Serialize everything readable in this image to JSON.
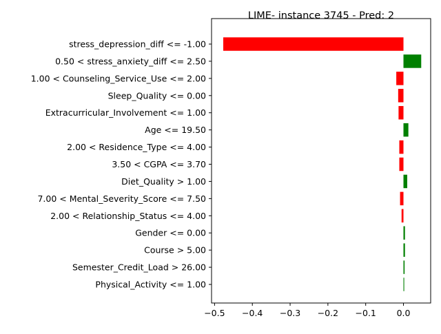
{
  "chart_data": {
    "type": "bar",
    "orientation": "horizontal",
    "title": "LIME- instance 3745 - Pred: 2",
    "xlabel": "",
    "ylabel": "",
    "categories": [
      "stress_depression_diff <= -1.00",
      "0.50 < stress_anxiety_diff <= 2.50",
      "1.00 < Counseling_Service_Use <= 2.00",
      "Sleep_Quality <= 0.00",
      "Extracurricular_Involvement <= 1.00",
      "Age <= 19.50",
      "2.00 < Residence_Type <= 4.00",
      "3.50 < CGPA <= 3.70",
      "Diet_Quality > 1.00",
      "7.00 < Mental_Severity_Score <= 7.50",
      "2.00 < Relationship_Status <= 4.00",
      "Gender <= 0.00",
      "Course > 5.00",
      "Semester_Credit_Load > 26.00",
      "Physical_Activity <= 1.00"
    ],
    "values": [
      -0.477,
      0.047,
      -0.019,
      -0.014,
      -0.013,
      0.013,
      -0.011,
      -0.011,
      0.01,
      -0.009,
      -0.005,
      0.004,
      0.004,
      0.003,
      0.002
    ],
    "xlim": [
      -0.508,
      0.072
    ],
    "xticks": [
      -0.5,
      -0.4,
      -0.3,
      -0.2,
      -0.1,
      0.0
    ],
    "xtick_labels": [
      "−0.5",
      "−0.4",
      "−0.3",
      "−0.2",
      "−0.1",
      "0.0"
    ],
    "grid": false,
    "legend": "none",
    "colors": {
      "positive": "#008000",
      "negative": "#ff0000",
      "axis": "#000000"
    }
  }
}
